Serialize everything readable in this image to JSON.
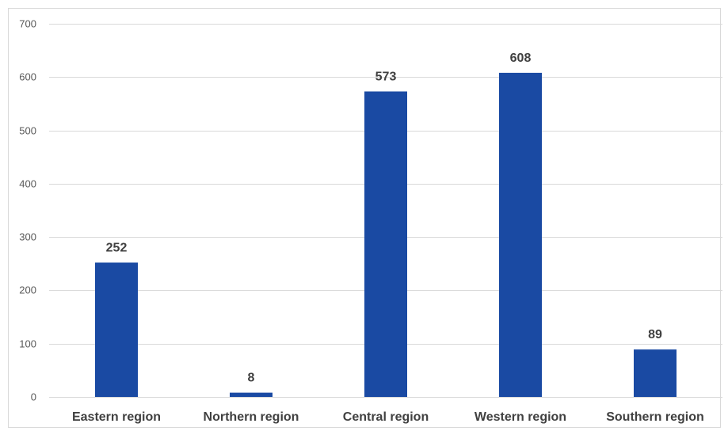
{
  "chart_data": {
    "type": "bar",
    "title": "",
    "xlabel": "",
    "ylabel": "",
    "categories": [
      "Eastern region",
      "Northern region",
      "Central region",
      "Western region",
      "Southern region"
    ],
    "values": [
      252,
      8,
      573,
      608,
      89
    ],
    "data_labels": [
      "252",
      "8",
      "573",
      "608",
      "89"
    ],
    "ylim": [
      0,
      700
    ],
    "yticks": [
      0,
      100,
      200,
      300,
      400,
      500,
      600,
      700
    ],
    "ytick_labels": [
      "0",
      "100",
      "200",
      "300",
      "400",
      "500",
      "600",
      "700"
    ],
    "grid": true,
    "legend": "none",
    "bar_color": "#1a4aa3"
  }
}
